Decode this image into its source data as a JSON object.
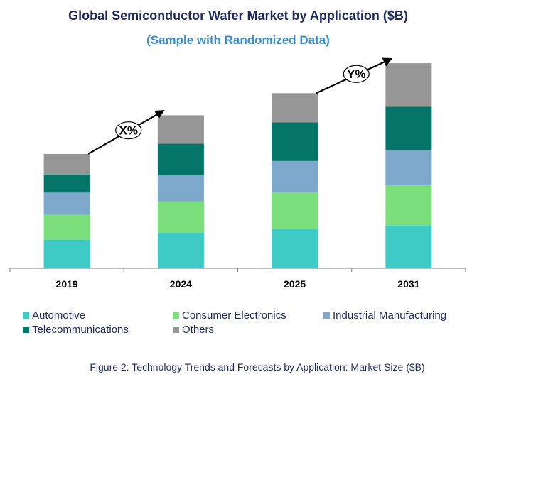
{
  "chart_data": {
    "type": "bar",
    "stacked": true,
    "title": "Global Semiconductor Wafer Market by Application ($B)",
    "subtitle": "(Sample with Randomized Data)",
    "categories": [
      "2019",
      "2024",
      "2025",
      "2031"
    ],
    "series": [
      {
        "name": "Automotive",
        "color": "#3ecbc6",
        "values": [
          36,
          45,
          50,
          54
        ]
      },
      {
        "name": "Consumer Electronics",
        "color": "#7be07b",
        "values": [
          32,
          40,
          46,
          51
        ]
      },
      {
        "name": "Industrial Manufacturing",
        "color": "#7ea7cc",
        "values": [
          28,
          33,
          40,
          45
        ]
      },
      {
        "name": "Telecommunications",
        "color": "#047568",
        "values": [
          23,
          40,
          49,
          55
        ]
      },
      {
        "name": "Others",
        "color": "#969696",
        "values": [
          26,
          36,
          37,
          55
        ]
      }
    ],
    "ylim": [
      0,
      270
    ],
    "grid": false,
    "legend_position": "bottom",
    "annotations": [
      {
        "text": "X%",
        "from": "2019",
        "to": "2024"
      },
      {
        "text": "Y%",
        "from": "2025",
        "to": "2031"
      }
    ]
  },
  "caption": "Figure 2: Technology Trends and Forecasts by Application: Market Size ($B)"
}
